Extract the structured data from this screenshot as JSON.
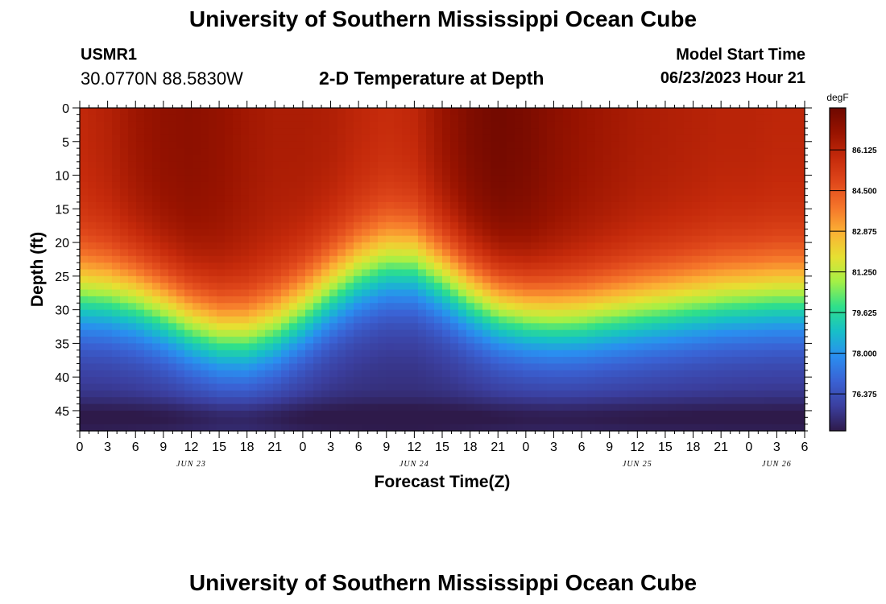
{
  "header": {
    "title": "University of Southern Mississippi Ocean Cube",
    "station_id": "USMR1",
    "coordinates": "30.0770N  88.5830W",
    "subtitle": "2-D Temperature at Depth",
    "model_start_label": "Model Start Time",
    "model_start_value": "06/23/2023 Hour 21"
  },
  "footer": {
    "title": "University of Southern Mississippi Ocean Cube"
  },
  "chart_data": {
    "type": "heatmap",
    "title": "2-D Temperature at Depth",
    "xlabel": "Forecast Time(Z)",
    "ylabel": "Depth (ft)",
    "xlim": [
      0,
      78
    ],
    "ylim": [
      48,
      0
    ],
    "x_ticks": [
      0,
      3,
      6,
      9,
      12,
      15,
      18,
      21,
      24,
      27,
      30,
      33,
      36,
      39,
      42,
      45,
      48,
      51,
      54,
      57,
      60,
      63,
      66,
      69,
      72,
      75,
      78
    ],
    "x_tick_labels": [
      "0",
      "3",
      "6",
      "9",
      "12",
      "15",
      "18",
      "21",
      "0",
      "3",
      "6",
      "9",
      "12",
      "15",
      "18",
      "21",
      "0",
      "3",
      "6",
      "9",
      "12",
      "15",
      "18",
      "21",
      "0",
      "3",
      "6"
    ],
    "date_labels": [
      {
        "x": 12,
        "label": "JUN 23"
      },
      {
        "x": 36,
        "label": "JUN 24"
      },
      {
        "x": 60,
        "label": "JUN 25"
      },
      {
        "x": 75,
        "label": "JUN 26"
      }
    ],
    "y_ticks": [
      0,
      5,
      10,
      15,
      20,
      25,
      30,
      35,
      40,
      45
    ],
    "colorbar": {
      "units": "degF",
      "min": 74.9,
      "max": 87.8,
      "ticks": [
        86.125,
        84.5,
        82.875,
        81.25,
        79.625,
        78.0,
        76.375
      ],
      "tick_labels": [
        "86.125",
        "84.500",
        "82.875",
        "81.250",
        "79.625",
        "78.000",
        "76.375"
      ],
      "colors": [
        "#2e1a4a",
        "#3b3f9f",
        "#3a62d4",
        "#2a8ef0",
        "#17bfc8",
        "#2fe08a",
        "#a4f046",
        "#e6e032",
        "#fbb134",
        "#f5752a",
        "#e0481b",
        "#c52a0b",
        "#981300",
        "#6e0800"
      ]
    },
    "thermocline_depth_ft": {
      "x": [
        0,
        3,
        6,
        9,
        12,
        15,
        18,
        21,
        24,
        27,
        30,
        33,
        36,
        39,
        42,
        45,
        48,
        51,
        54,
        57,
        60,
        63,
        66,
        69,
        72,
        75,
        78
      ],
      "values": [
        27.6,
        27.8,
        28.5,
        30.0,
        32.0,
        33.5,
        33.8,
        32.5,
        30.0,
        27.0,
        24.5,
        23.0,
        23.0,
        25.0,
        27.5,
        29.5,
        30.5,
        31.0,
        31.0,
        30.5,
        30.0,
        29.5,
        29.0,
        28.5,
        28.2,
        28.0,
        28.0
      ]
    },
    "surface_temp_degF": {
      "x": [
        0,
        3,
        6,
        9,
        12,
        15,
        18,
        21,
        24,
        27,
        30,
        33,
        36,
        39,
        42,
        45,
        48,
        51,
        54,
        57,
        60,
        63,
        66,
        69,
        72,
        75,
        78
      ],
      "values": [
        85.9,
        86.2,
        86.7,
        87.0,
        87.1,
        86.9,
        86.6,
        86.4,
        86.4,
        86.3,
        86.0,
        85.8,
        86.0,
        86.8,
        87.4,
        87.7,
        87.5,
        87.1,
        86.8,
        86.6,
        86.4,
        86.3,
        86.2,
        86.1,
        86.1,
        86.0,
        86.0
      ]
    },
    "bottom_temp_degF": 75.4
  }
}
